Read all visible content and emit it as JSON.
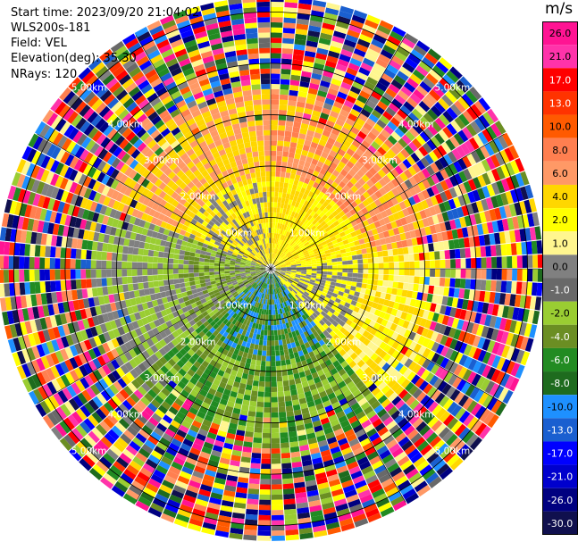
{
  "header": {
    "start_time": "Start time: 2023/09/20 21:04:02",
    "instrument": "WLS200s-181",
    "field": "Field: VEL",
    "elevation": "Elevation(deg): 35.30",
    "nrays": "NRays: 120"
  },
  "colorbar": {
    "unit": "m/s",
    "ticks": [
      "26.0",
      "21.0",
      "17.0",
      "13.0",
      "10.0",
      "8.0",
      "6.0",
      "4.0",
      "2.0",
      "1.0",
      "0.0",
      "-1.0",
      "-2.0",
      "-4.0",
      "-6.0",
      "-8.0",
      "-10.0",
      "-13.0",
      "-17.0",
      "-21.0",
      "-26.0",
      "-30.0"
    ],
    "colors": [
      "#ff1493",
      "#ff33aa",
      "#ff0000",
      "#ff3300",
      "#ff5a00",
      "#ff7f50",
      "#ff9966",
      "#ffd700",
      "#ffff00",
      "#fff68f",
      "#808080",
      "#696969",
      "#9acd32",
      "#6b8e23",
      "#228b22",
      "#1e6b1e",
      "#1e90ff",
      "#1a5fd0",
      "#0000ff",
      "#0000cd",
      "#000080",
      "#10104e"
    ]
  },
  "chart_data": {
    "type": "heatmap",
    "subtype": "radar PPI (polar)",
    "field": "VEL",
    "rays": 120,
    "range_rings_km": [
      1.0,
      2.0,
      3.0,
      4.0,
      5.0
    ],
    "ring_labels": {
      "upper_left": [
        "1.00km",
        "2.00km",
        "3.00km",
        "4.00km",
        "5.00km"
      ],
      "upper_right": [
        "1.00km",
        "2.00km",
        "3.00km",
        "4.00km",
        "5.00km"
      ],
      "lower_left": [
        "1.00km",
        "2.00km",
        "3.00km",
        "4.00km",
        "5.00km"
      ],
      "lower_right": [
        "1.00km",
        "2.00km",
        "3.00km",
        "4.00km",
        "5.00km"
      ]
    },
    "sector_pattern": [
      {
        "azimuth_deg": [
          290,
          360
        ],
        "colors_near": [
          "#ffff00",
          "#ffd700",
          "#808080"
        ],
        "colors_far": [
          "#ffd700",
          "#ff9966"
        ]
      },
      {
        "azimuth_deg": [
          0,
          80
        ],
        "colors_near": [
          "#ffff00",
          "#ffd700"
        ],
        "colors_far": [
          "#ff9966",
          "#ff7f50",
          "#ffd700"
        ]
      },
      {
        "azimuth_deg": [
          80,
          140
        ],
        "colors_near": [
          "#ffff00",
          "#808080"
        ],
        "colors_far": [
          "#ffff00",
          "#fff68f",
          "#ffd700"
        ]
      },
      {
        "azimuth_deg": [
          140,
          230
        ],
        "colors_near": [
          "#228b22",
          "#1e90ff",
          "#6b8e23"
        ],
        "colors_far": [
          "#228b22",
          "#9acd32",
          "#6b8e23"
        ]
      },
      {
        "azimuth_deg": [
          230,
          290
        ],
        "colors_near": [
          "#9acd32",
          "#808080",
          "#6b8e23"
        ],
        "colors_far": [
          "#9acd32",
          "#808080"
        ]
      }
    ],
    "noise_start_km": 3.4,
    "grid": true
  }
}
